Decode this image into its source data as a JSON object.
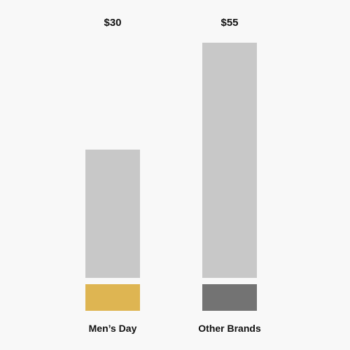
{
  "chart_data": {
    "type": "bar",
    "categories": [
      "Men’s Day",
      "Other Brands"
    ],
    "values": [
      30,
      55
    ],
    "value_labels": [
      "$30",
      "$55"
    ],
    "title": "",
    "xlabel": "",
    "ylabel": "",
    "ylim": [
      0,
      55
    ],
    "grid": false,
    "legend": "none",
    "colors": {
      "background": "#f8f8f8",
      "bar": "#c8c8c8",
      "swatches": [
        "#deb552",
        "#737373"
      ],
      "text": "#111111"
    }
  }
}
